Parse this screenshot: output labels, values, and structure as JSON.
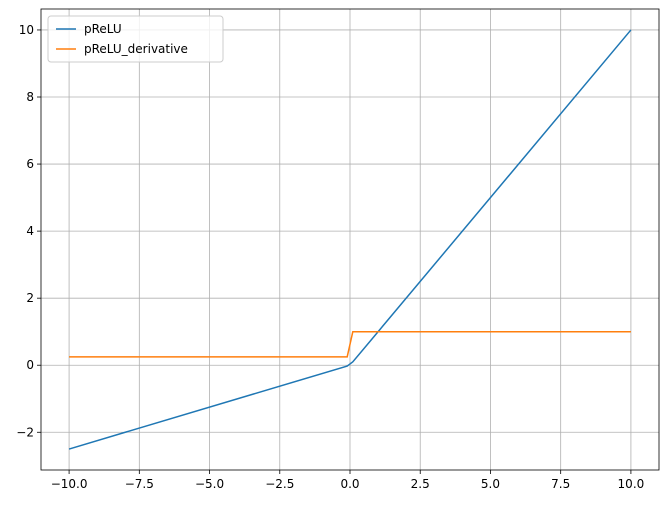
{
  "chart_data": {
    "type": "line",
    "x": [
      -10,
      -0.1,
      0.1,
      10
    ],
    "series": [
      {
        "name": "pReLU",
        "color": "#1f77b4",
        "values": [
          -2.5,
          -0.025,
          0.1,
          10
        ]
      },
      {
        "name": "pReLU_derivative",
        "color": "#ff7f0e",
        "values": [
          0.25,
          0.25,
          1,
          1
        ]
      }
    ],
    "xlim": [
      -11,
      11
    ],
    "ylim": [
      -3.125,
      10.625
    ],
    "xticks": [
      {
        "value": -10,
        "label": "−10.0"
      },
      {
        "value": -7.5,
        "label": "−7.5"
      },
      {
        "value": -5,
        "label": "−5.0"
      },
      {
        "value": -2.5,
        "label": "−2.5"
      },
      {
        "value": 0,
        "label": "0.0"
      },
      {
        "value": 2.5,
        "label": "2.5"
      },
      {
        "value": 5,
        "label": "5.0"
      },
      {
        "value": 7.5,
        "label": "7.5"
      },
      {
        "value": 10,
        "label": "10.0"
      }
    ],
    "yticks": [
      {
        "value": -2,
        "label": "−2"
      },
      0,
      2,
      4,
      6,
      8,
      10
    ],
    "grid": true,
    "legend": "upper-left"
  }
}
